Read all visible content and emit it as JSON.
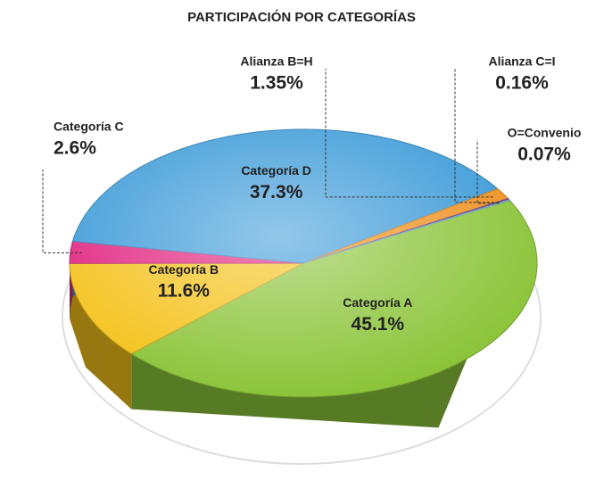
{
  "chart_data": {
    "type": "pie",
    "title": "PARTICIPACIÓN POR CATEGORÍAS",
    "categories": [
      "Categoría A",
      "Categoría B",
      "Categoría C",
      "Categoría D",
      "Alianza B=H",
      "Alianza C=I",
      "O=Convenio"
    ],
    "values": [
      45.1,
      11.6,
      2.6,
      37.3,
      1.35,
      0.16,
      0.07
    ],
    "value_labels": [
      "45.1%",
      "11.6%",
      "2.6%",
      "37.3%",
      "1.35%",
      "0.16%",
      "0.07%"
    ],
    "colors": [
      "#8cc43a",
      "#f4c21a",
      "#e0237e",
      "#3b9ad8",
      "#f0901e",
      "#7a3e98",
      "#78c6ea"
    ]
  }
}
